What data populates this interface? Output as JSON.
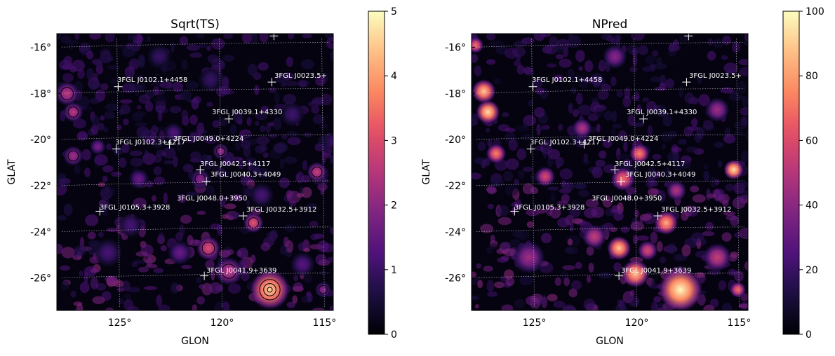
{
  "chart_data": [
    {
      "type": "heatmap",
      "title": "Sqrt(TS)",
      "xlabel": "GLON",
      "ylabel": "GLAT",
      "x_ticks": [
        "125°",
        "120°",
        "115°"
      ],
      "y_ticks": [
        "-16°",
        "-18°",
        "-20°",
        "-22°",
        "-24°",
        "-26°"
      ],
      "xlim": [
        128,
        114.5
      ],
      "ylim": [
        -27.5,
        -15.5
      ],
      "grid": true,
      "colorbar": {
        "min": 0,
        "max": 5,
        "ticks": [
          "0",
          "1",
          "2",
          "3",
          "4",
          "5"
        ],
        "colormap": "magma"
      },
      "contours": true,
      "blobs": [
        {
          "x": 117.6,
          "y": -26.6,
          "v": 4.6,
          "r": 1.0
        },
        {
          "x": 119.6,
          "y": -25.8,
          "v": 2.6,
          "r": 0.7
        },
        {
          "x": 120.6,
          "y": -24.8,
          "v": 3.1,
          "r": 0.6
        },
        {
          "x": 118.4,
          "y": -23.7,
          "v": 3.2,
          "r": 0.5
        },
        {
          "x": 127.5,
          "y": -18.1,
          "v": 2.6,
          "r": 0.6
        },
        {
          "x": 127.2,
          "y": -18.9,
          "v": 2.6,
          "r": 0.5
        },
        {
          "x": 127.2,
          "y": -20.8,
          "v": 2.3,
          "r": 0.5
        },
        {
          "x": 126.0,
          "y": -20.4,
          "v": 1.8,
          "r": 0.4
        },
        {
          "x": 121.0,
          "y": -21.8,
          "v": 2.0,
          "r": 0.5
        },
        {
          "x": 120.0,
          "y": -20.6,
          "v": 2.2,
          "r": 0.4
        },
        {
          "x": 115.3,
          "y": -21.5,
          "v": 2.8,
          "r": 0.5
        },
        {
          "x": 124.0,
          "y": -21.8,
          "v": 1.6,
          "r": 0.5
        },
        {
          "x": 122.0,
          "y": -25.0,
          "v": 1.6,
          "r": 0.6
        },
        {
          "x": 116.0,
          "y": -25.5,
          "v": 1.4,
          "r": 0.6
        },
        {
          "x": 125.5,
          "y": -25.0,
          "v": 1.2,
          "r": 0.7
        },
        {
          "x": 124.4,
          "y": -23.8,
          "v": 1.2,
          "r": 0.6
        },
        {
          "x": 122.3,
          "y": -19.8,
          "v": 1.3,
          "r": 0.5
        },
        {
          "x": 120.5,
          "y": -17.5,
          "v": 1.0,
          "r": 0.6
        },
        {
          "x": 116.5,
          "y": -19.0,
          "v": 1.1,
          "r": 0.6
        },
        {
          "x": 115.0,
          "y": -26.6,
          "v": 2.0,
          "r": 0.4
        },
        {
          "x": 123.0,
          "y": -16.5,
          "v": 1.0,
          "r": 0.6
        },
        {
          "x": 118.0,
          "y": -22.5,
          "v": 1.2,
          "r": 0.6
        }
      ]
    },
    {
      "type": "heatmap",
      "title": "NPred",
      "xlabel": "GLON",
      "ylabel": "GLAT",
      "x_ticks": [
        "125°",
        "120°",
        "115°"
      ],
      "y_ticks": [
        "-16°",
        "-18°",
        "-20°",
        "-22°",
        "-24°",
        "-26°"
      ],
      "xlim": [
        128,
        114.5
      ],
      "ylim": [
        -27.5,
        -15.5
      ],
      "grid": true,
      "colorbar": {
        "min": 0,
        "max": 100,
        "ticks": [
          "0",
          "20",
          "40",
          "60",
          "80",
          "100"
        ],
        "colormap": "magma"
      },
      "contours": false,
      "blobs": [
        {
          "x": 117.8,
          "y": -26.6,
          "v": 100,
          "r": 1.1
        },
        {
          "x": 120.0,
          "y": -25.9,
          "v": 90,
          "r": 0.7
        },
        {
          "x": 120.8,
          "y": -24.8,
          "v": 90,
          "r": 0.6
        },
        {
          "x": 118.5,
          "y": -23.7,
          "v": 85,
          "r": 0.6
        },
        {
          "x": 119.4,
          "y": -24.9,
          "v": 60,
          "r": 0.5
        },
        {
          "x": 127.4,
          "y": -18.0,
          "v": 90,
          "r": 0.6
        },
        {
          "x": 127.2,
          "y": -18.9,
          "v": 95,
          "r": 0.6
        },
        {
          "x": 126.8,
          "y": -20.7,
          "v": 75,
          "r": 0.5
        },
        {
          "x": 120.6,
          "y": -21.8,
          "v": 70,
          "r": 0.6
        },
        {
          "x": 119.8,
          "y": -20.7,
          "v": 75,
          "r": 0.5
        },
        {
          "x": 115.2,
          "y": -21.4,
          "v": 95,
          "r": 0.5
        },
        {
          "x": 124.4,
          "y": -21.7,
          "v": 60,
          "r": 0.5
        },
        {
          "x": 122.0,
          "y": -24.3,
          "v": 55,
          "r": 0.6
        },
        {
          "x": 116.0,
          "y": -25.2,
          "v": 55,
          "r": 0.7
        },
        {
          "x": 125.2,
          "y": -25.2,
          "v": 45,
          "r": 0.8
        },
        {
          "x": 122.6,
          "y": -19.6,
          "v": 50,
          "r": 0.5
        },
        {
          "x": 127.8,
          "y": -16.0,
          "v": 70,
          "r": 0.4
        },
        {
          "x": 116.0,
          "y": -18.8,
          "v": 45,
          "r": 0.6
        },
        {
          "x": 115.0,
          "y": -26.6,
          "v": 70,
          "r": 0.4
        },
        {
          "x": 121.0,
          "y": -16.5,
          "v": 40,
          "r": 0.6
        },
        {
          "x": 118.0,
          "y": -22.3,
          "v": 50,
          "r": 0.5
        }
      ]
    }
  ],
  "sources": [
    {
      "label": "3FGL J0102.1+4458",
      "x": 125.0,
      "y": -17.8
    },
    {
      "label": "3FGL J0023.5+",
      "x": 117.5,
      "y": -17.6
    },
    {
      "label": "3FGL J0039.1+4330",
      "x": 119.6,
      "y": -19.2
    },
    {
      "label": "3FGL J0049.0+4224",
      "x": 122.5,
      "y": -20.3
    },
    {
      "label": "3FGL J0102.3+4217",
      "x": 125.1,
      "y": -20.5
    },
    {
      "label": "3FGL J0042.5+4117",
      "x": 121.0,
      "y": -21.4
    },
    {
      "label": "3FGL J0040.3+4049",
      "x": 120.7,
      "y": -21.9
    },
    {
      "label": "3FGL J0048.0+3950",
      "x": null,
      "y": null
    },
    {
      "label": "3FGL J0105.3+3928",
      "x": 125.9,
      "y": -23.2
    },
    {
      "label": "3FGL J0032.5+3912",
      "x": 118.9,
      "y": -23.4
    },
    {
      "label": "3FGL J0041.9+3639",
      "x": 120.8,
      "y": -26.0
    },
    {
      "label": "",
      "x": 117.4,
      "y": -15.6
    }
  ]
}
